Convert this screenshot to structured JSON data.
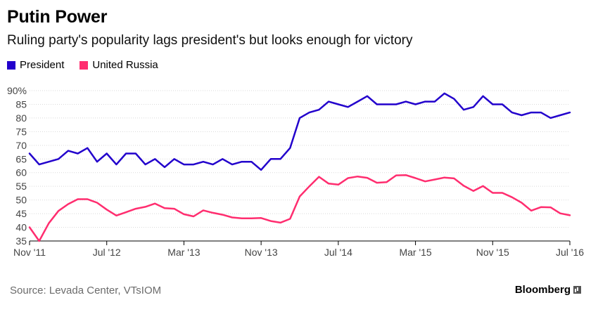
{
  "header": {
    "title": "Putin Power",
    "subtitle": "Ruling party's popularity lags president's but looks enough for victory"
  },
  "footer": {
    "source": "Source: Levada Center, VTsIOM",
    "brand": "Bloomberg"
  },
  "chart_data": {
    "type": "line",
    "title": "Putin Power",
    "subtitle": "Ruling party's popularity lags president's but looks enough for victory",
    "xlabel": "",
    "ylabel": "",
    "x_range": [
      "Nov '11",
      "Jul '16"
    ],
    "ylim": [
      35,
      90
    ],
    "yticks": [
      35,
      40,
      45,
      50,
      55,
      60,
      65,
      70,
      75,
      80,
      85,
      90
    ],
    "ytick_labels": [
      "35",
      "40",
      "45",
      "50",
      "55",
      "60",
      "65",
      "70",
      "75",
      "80",
      "85",
      "90%"
    ],
    "xticks": [
      {
        "label": "Nov '11",
        "index": 0
      },
      {
        "label": "Jul '12",
        "index": 8
      },
      {
        "label": "Mar '13",
        "index": 16
      },
      {
        "label": "Nov '13",
        "index": 24
      },
      {
        "label": "Jul '14",
        "index": 32
      },
      {
        "label": "Mar '15",
        "index": 40
      },
      {
        "label": "Nov '15",
        "index": 48
      },
      {
        "label": "Jul '16",
        "index": 56
      }
    ],
    "grid": true,
    "legend_position": "top-left",
    "series": [
      {
        "name": "President",
        "color": "#2200cc",
        "x": [
          0,
          1,
          2,
          3,
          4,
          5,
          6,
          7,
          8,
          9,
          10,
          11,
          12,
          13,
          14,
          15,
          16,
          17,
          18,
          19,
          20,
          21,
          22,
          23,
          24,
          25,
          26,
          27,
          28,
          29,
          30,
          31,
          32,
          33,
          34,
          35,
          36,
          37,
          38,
          39,
          40,
          41,
          42,
          43,
          44,
          45,
          46,
          47,
          48,
          49,
          50,
          51,
          52,
          53,
          54,
          55,
          56
        ],
        "values": [
          67,
          63,
          64,
          65,
          68,
          67,
          69,
          64,
          67,
          63,
          67,
          67,
          63,
          65,
          62,
          65,
          63,
          63,
          64,
          63,
          65,
          63,
          64,
          64,
          61,
          65,
          65,
          69,
          80,
          82,
          83,
          86,
          85,
          84,
          86,
          88,
          85,
          85,
          85,
          86,
          85,
          86,
          86,
          89,
          87,
          83,
          84,
          88,
          85,
          85,
          82,
          81,
          82,
          82,
          80,
          81,
          82
        ]
      },
      {
        "name": "United Russia",
        "color": "#ff2d6f",
        "x": [
          0,
          1,
          2,
          3,
          4,
          5,
          6,
          7,
          8,
          9,
          10,
          11,
          12,
          13,
          14,
          15,
          16,
          17,
          18,
          19,
          20,
          21,
          22,
          23,
          24,
          25,
          26,
          27,
          28,
          29,
          30,
          31,
          32,
          33,
          34,
          35,
          36,
          37,
          38,
          39,
          40,
          41,
          42,
          43,
          44,
          45,
          46,
          47,
          48,
          49,
          50,
          51,
          52,
          53,
          54,
          55,
          56
        ],
        "values": [
          40,
          35,
          41.5,
          46,
          48.5,
          50.3,
          50.3,
          49,
          46.5,
          44.3,
          45.5,
          46.8,
          47.5,
          48.7,
          47,
          46.8,
          44.8,
          44,
          46.2,
          45.3,
          44.6,
          43.6,
          43.3,
          43.3,
          43.4,
          42.3,
          41.7,
          43.1,
          51.3,
          55,
          58.5,
          56,
          55.6,
          58,
          58.6,
          58.1,
          56.3,
          56.5,
          59,
          59.1,
          58,
          56.8,
          57.5,
          58.2,
          57.9,
          55.2,
          53.3,
          55.1,
          52.6,
          52.6,
          51,
          49,
          46.1,
          47.4,
          47.3,
          45.1,
          44.4
        ]
      }
    ]
  }
}
